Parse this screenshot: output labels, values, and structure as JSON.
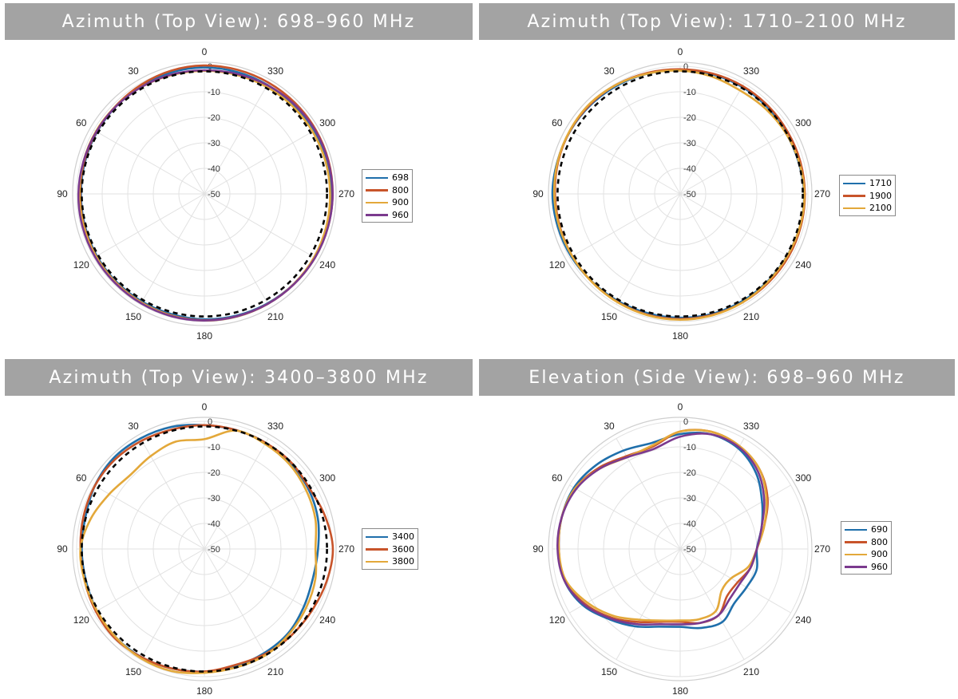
{
  "chart_data": [
    {
      "type": "polar-line",
      "title": "Azimuth (Top View): 698–960 MHz",
      "angle_ticks": [
        "0",
        "30",
        "60",
        "90",
        "120",
        "150",
        "180",
        "210",
        "240",
        "270",
        "300",
        "330"
      ],
      "radial_ticks": [
        "0",
        "-10",
        "-20",
        "-30",
        "-40",
        "-50"
      ],
      "rlim": [
        -50,
        0
      ],
      "grid": true,
      "legend_placement": "right",
      "reference_dashed_db": -2,
      "series": [
        {
          "name": "698",
          "color": "#1f6fab",
          "values": [
            -0.5,
            -0.7,
            -1.0,
            -1.3,
            -1.5,
            -1.6,
            -1.7,
            -1.6,
            -1.4,
            -1.3,
            -1.3,
            -1.2,
            -0.9,
            -0.7,
            -0.5,
            -0.3,
            -0.2,
            -0.3,
            -0.5,
            -0.6,
            -0.6,
            -0.7,
            -0.7,
            -0.6
          ]
        },
        {
          "name": "800",
          "color": "#c8542a",
          "values": [
            0.3,
            0.0,
            -0.6,
            -1.1,
            -1.3,
            -1.3,
            -1.4,
            -1.3,
            -1.1,
            -1.0,
            -0.9,
            -0.7,
            -0.5,
            -0.4,
            -0.3,
            -0.2,
            0.0,
            0.1,
            0.2,
            0.3,
            0.3,
            0.3,
            0.3,
            0.3
          ]
        },
        {
          "name": "900",
          "color": "#e3a83a",
          "values": [
            -1.8,
            -1.7,
            -1.4,
            -1.2,
            -1.0,
            -1.0,
            -1.1,
            -1.1,
            -1.0,
            -0.9,
            -0.8,
            -0.6,
            -0.4,
            -0.3,
            -0.3,
            -0.3,
            -0.4,
            -0.6,
            -0.8,
            -0.9,
            -1.1,
            -1.3,
            -1.5,
            -1.7
          ]
        },
        {
          "name": "960",
          "color": "#7b3a8e",
          "values": [
            -1.6,
            -1.5,
            -1.4,
            -1.3,
            -1.2,
            -1.0,
            -0.7,
            -0.6,
            -0.6,
            -0.6,
            -0.5,
            -0.4,
            -0.4,
            -0.4,
            -0.3,
            -0.2,
            0.0,
            0.1,
            0.2,
            0.1,
            0.0,
            -0.3,
            -0.8,
            -1.3
          ]
        }
      ]
    },
    {
      "type": "polar-line",
      "title": "Azimuth (Top View): 1710–2100 MHz",
      "angle_ticks": [
        "0",
        "30",
        "60",
        "90",
        "120",
        "150",
        "180",
        "210",
        "240",
        "270",
        "300",
        "330"
      ],
      "radial_ticks": [
        "0",
        "-10",
        "-20",
        "-30",
        "-40",
        "-50"
      ],
      "rlim": [
        -50,
        0
      ],
      "grid": true,
      "legend_placement": "right",
      "reference_dashed_db": -2,
      "series": [
        {
          "name": "1710",
          "color": "#1f6fab",
          "values": [
            -1.5,
            -1.2,
            -0.9,
            -0.6,
            -0.4,
            -0.3,
            0.0,
            -0.4,
            -0.8,
            -1.3,
            -1.5,
            -1.6,
            -1.5,
            -1.4,
            -1.5,
            -1.6,
            -1.6,
            -1.4,
            -1.5,
            -2.0,
            -2.2,
            -1.9,
            -1.6,
            -1.5
          ]
        },
        {
          "name": "1900",
          "color": "#c8542a",
          "values": [
            -1.2,
            -0.9,
            -0.5,
            -0.3,
            -0.3,
            -0.6,
            -1.0,
            -1.2,
            -1.2,
            -1.2,
            -1.1,
            -1.0,
            -1.0,
            -1.0,
            -1.0,
            -1.0,
            -1.0,
            -1.1,
            -1.2,
            -1.3,
            -1.4,
            -1.3,
            -1.2,
            -1.2
          ]
        },
        {
          "name": "2100",
          "color": "#e3a83a",
          "values": [
            -1.7,
            -1.2,
            -0.5,
            0.0,
            -0.2,
            -0.4,
            -0.7,
            -1.0,
            -1.2,
            -1.2,
            -1.0,
            -0.8,
            -0.7,
            -0.8,
            -1.0,
            -1.4,
            -1.5,
            -1.4,
            -1.4,
            -1.8,
            -2.3,
            -2.8,
            -3.2,
            -2.4
          ]
        }
      ]
    },
    {
      "type": "polar-line",
      "title": "Azimuth (Top View): 3400–3800 MHz",
      "angle_ticks": [
        "0",
        "30",
        "60",
        "90",
        "120",
        "150",
        "180",
        "210",
        "240",
        "270",
        "300",
        "330"
      ],
      "radial_ticks": [
        "0",
        "-10",
        "-20",
        "-30",
        "-40",
        "-50"
      ],
      "rlim": [
        -50,
        0
      ],
      "grid": true,
      "legend_placement": "right",
      "reference_dashed_db": -2,
      "series": [
        {
          "name": "3400",
          "color": "#1f6fab",
          "values": [
            -1.5,
            -0.5,
            0.0,
            0.3,
            -0.5,
            -1.8,
            -2.0,
            -2.0,
            -1.5,
            -1.0,
            -1.0,
            -1.5,
            -2.0,
            -2.5,
            -3.0,
            -3.5,
            -5.0,
            -6.0,
            -5.5,
            -4.0,
            -3.0,
            -2.5,
            -2.0,
            -1.8
          ]
        },
        {
          "name": "3600",
          "color": "#c8542a",
          "values": [
            -1.5,
            -1.5,
            -1.0,
            -0.5,
            -0.5,
            -1.0,
            -1.5,
            -1.5,
            -1.0,
            -0.5,
            -1.0,
            -1.5,
            -2.0,
            -3.0,
            -2.5,
            -2.0,
            -1.5,
            -0.5,
            0.3,
            -1.0,
            -2.5,
            -2.0,
            -2.0,
            -1.8
          ]
        },
        {
          "name": "3800",
          "color": "#e3a83a",
          "values": [
            -7.0,
            -6.5,
            -8.0,
            -9.0,
            -7.0,
            -4.0,
            -1.5,
            -1.5,
            -1.5,
            -1.0,
            -0.5,
            -0.5,
            -1.5,
            -2.0,
            -2.0,
            -3.0,
            -4.0,
            -5.0,
            -6.5,
            -5.0,
            -4.0,
            -3.0,
            -2.5,
            -2.0
          ]
        }
      ]
    },
    {
      "type": "polar-line",
      "title": "Elevation (Side View): 698–960 MHz",
      "angle_ticks": [
        "0",
        "30",
        "60",
        "90",
        "120",
        "150",
        "180",
        "210",
        "240",
        "270",
        "300",
        "330"
      ],
      "radial_ticks": [
        "0",
        "-10",
        "-20",
        "-30",
        "-40",
        "-50"
      ],
      "rlim": [
        -50,
        0
      ],
      "grid": true,
      "legend_placement": "right",
      "series": [
        {
          "name": "690",
          "color": "#1f6fab",
          "values": [
            -5.0,
            -7.0,
            -5.5,
            -3.5,
            -2.0,
            -2.0,
            -2.5,
            -3.0,
            -6.0,
            -11.0,
            -15.0,
            -18.5,
            -19.5,
            -18.0,
            -17.0,
            -20.0,
            -20.0,
            -19.0,
            -20.0,
            -17.0,
            -13.0,
            -8.0,
            -4.5,
            -3.5
          ]
        },
        {
          "name": "800",
          "color": "#c8542a",
          "values": [
            -4.0,
            -8.5,
            -8.0,
            -5.0,
            -2.5,
            -2.0,
            -2.5,
            -3.0,
            -7.0,
            -12.0,
            -17.0,
            -20.5,
            -21.5,
            -20.0,
            -20.0,
            -24.0,
            -24.0,
            -21.5,
            -20.0,
            -16.0,
            -10.5,
            -6.0,
            -3.5,
            -2.5
          ]
        },
        {
          "name": "900",
          "color": "#e3a83a",
          "values": [
            -4.0,
            -8.0,
            -8.5,
            -5.5,
            -2.5,
            -2.0,
            -2.5,
            -3.5,
            -8.0,
            -13.0,
            -18.0,
            -21.0,
            -22.0,
            -21.5,
            -22.0,
            -27.0,
            -27.0,
            -22.5,
            -20.0,
            -16.0,
            -11.0,
            -6.0,
            -3.5,
            -2.5
          ]
        },
        {
          "name": "960",
          "color": "#7b3a8e",
          "values": [
            -6.0,
            -9.5,
            -8.5,
            -5.5,
            -3.0,
            -2.0,
            -2.0,
            -3.0,
            -6.5,
            -11.5,
            -16.0,
            -19.5,
            -20.5,
            -20.0,
            -20.0,
            -22.5,
            -23.0,
            -21.5,
            -20.0,
            -17.0,
            -12.0,
            -7.0,
            -4.0,
            -3.5
          ]
        }
      ]
    }
  ]
}
